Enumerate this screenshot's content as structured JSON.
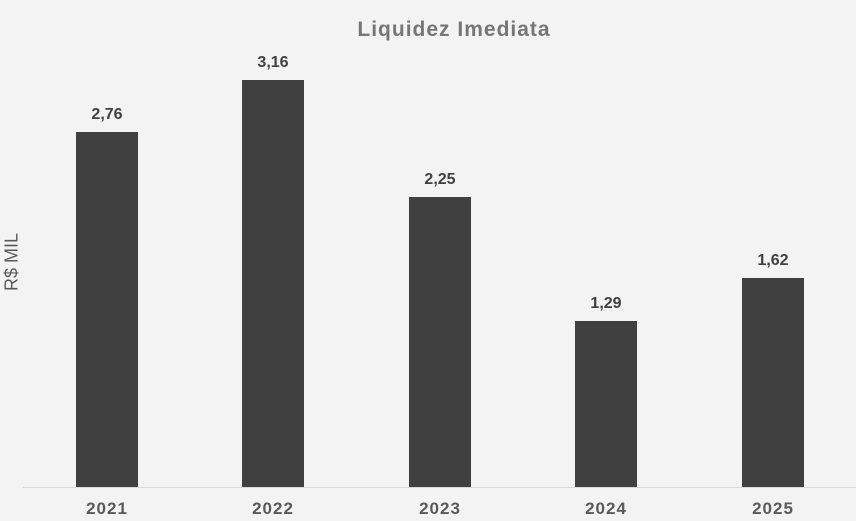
{
  "chart_data": {
    "type": "bar",
    "title": "Liquidez Imediata",
    "xlabel": "",
    "ylabel": "R$ MIL",
    "categories": [
      "2021",
      "2022",
      "2023",
      "2024",
      "2025"
    ],
    "values": [
      2.76,
      3.16,
      2.25,
      1.29,
      1.62
    ],
    "value_labels": [
      "2,76",
      "3,16",
      "2,25",
      "1,29",
      "1,62"
    ],
    "ylim": [
      0,
      3.5
    ],
    "grid": false,
    "legend": null,
    "bar_color": "#404040",
    "background_color": "#f3f3f3"
  }
}
